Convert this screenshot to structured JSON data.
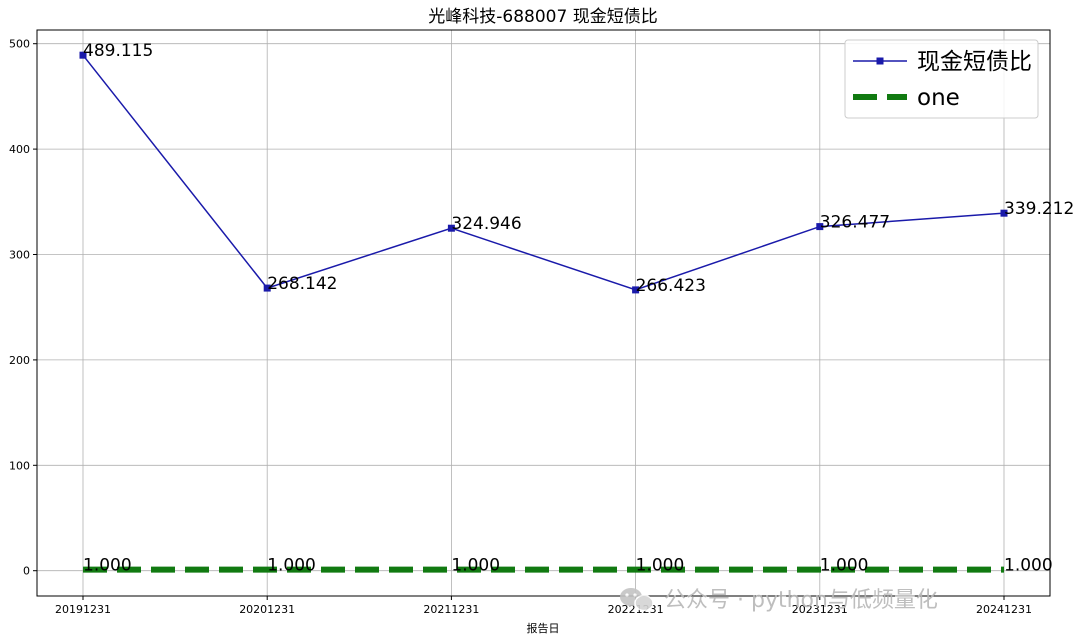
{
  "chart_data": {
    "type": "line",
    "title": "光峰科技-688007 现金短债比",
    "xlabel": "报告日",
    "ylabel": "",
    "categories": [
      "20191231",
      "20201231",
      "20211231",
      "20221231",
      "20231231",
      "20241231"
    ],
    "ylim": [
      -24,
      513
    ],
    "yticks": [
      0,
      100,
      200,
      300,
      400,
      500
    ],
    "grid": true,
    "legend_position": "top-right",
    "series": [
      {
        "name": "现金短债比",
        "values": [
          489.115,
          268.142,
          324.946,
          266.423,
          326.477,
          339.212
        ],
        "labels": [
          "489.115",
          "268.142",
          "324.946",
          "266.423",
          "326.477",
          "339.212"
        ],
        "color": "#1a1aaa",
        "style": "solid",
        "marker": "square"
      },
      {
        "name": "one",
        "values": [
          1,
          1,
          1,
          1,
          1,
          1
        ],
        "labels": [
          "1.000",
          "1.000",
          "1.000",
          "1.000",
          "1.000",
          "1.000"
        ],
        "color": "#117a11",
        "style": "dashed",
        "marker": "none"
      }
    ]
  },
  "watermark": {
    "text": "公众号 · python与低频量化",
    "icon": "wechat-icon"
  }
}
